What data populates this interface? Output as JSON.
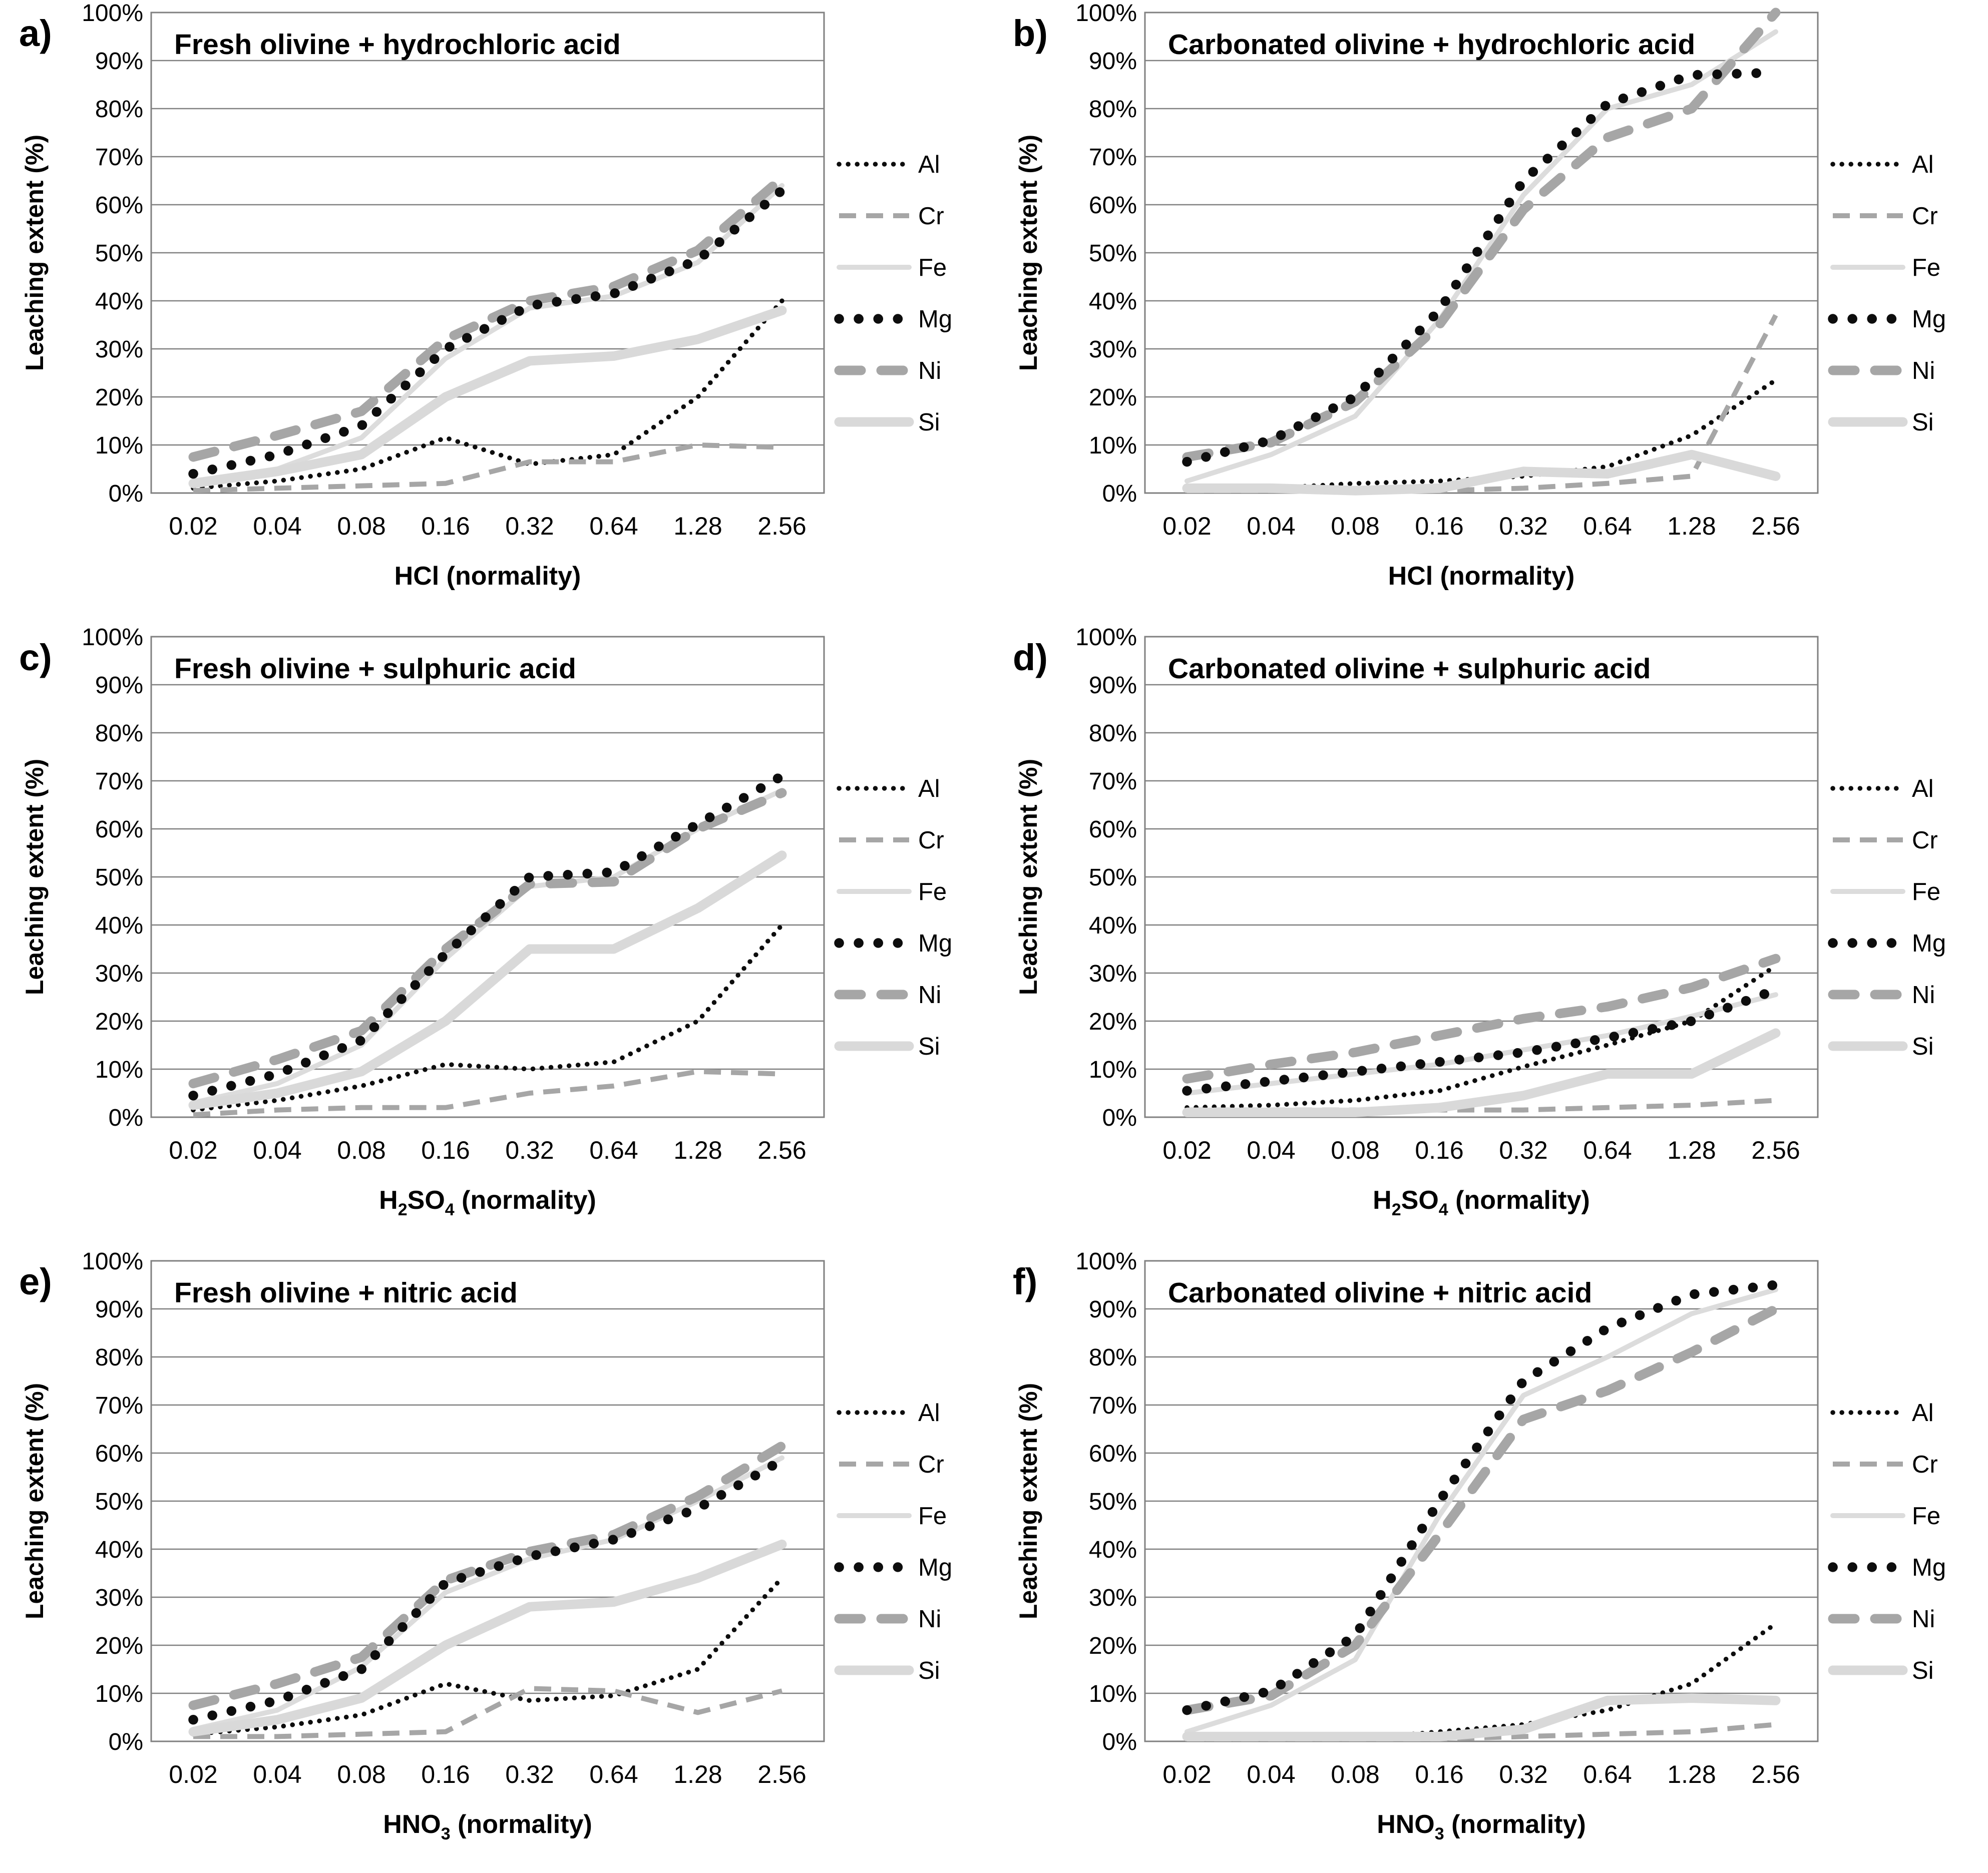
{
  "figure": {
    "ylabel": "Leaching extent (%)",
    "ytick_labels": [
      "0%",
      "10%",
      "20%",
      "30%",
      "40%",
      "50%",
      "60%",
      "70%",
      "80%",
      "90%",
      "100%"
    ],
    "categories": [
      "0.02",
      "0.04",
      "0.08",
      "0.16",
      "0.32",
      "0.64",
      "1.28",
      "2.56"
    ],
    "colors": {
      "black": "#0d0d0d",
      "gray": "#a6a6a6",
      "light_gray": "#d9d9d9",
      "light_gray_thin": "#dcdcdc",
      "gridline": "#808080",
      "text": "#000000",
      "background": "#ffffff"
    }
  },
  "legend": {
    "position": "right",
    "entries": [
      {
        "label": "Al",
        "key": "Al"
      },
      {
        "label": "Cr",
        "key": "Cr"
      },
      {
        "label": "Fe",
        "key": "Fe"
      },
      {
        "label": "Mg",
        "key": "Mg"
      },
      {
        "label": "Ni",
        "key": "Ni"
      },
      {
        "label": "Si",
        "key": "Si"
      }
    ]
  },
  "series_styles": {
    "Al": {
      "color": "#0d0d0d",
      "width": 9.5,
      "dash": "0.1 18",
      "cap": "round",
      "pattern": "fine-dotted"
    },
    "Cr": {
      "color": "#a6a6a6",
      "width": 10,
      "dash": "34 20",
      "cap": "butt",
      "pattern": "dashed-thin"
    },
    "Fe": {
      "color": "#dcdcdc",
      "width": 10,
      "dash": "",
      "cap": "round",
      "pattern": "solid-thin"
    },
    "Mg": {
      "color": "#0d0d0d",
      "width": 19.5,
      "dash": "0.1 39",
      "cap": "round",
      "pattern": "round-dots"
    },
    "Ni": {
      "color": "#a6a6a6",
      "width": 19,
      "dash": "44 40",
      "cap": "round",
      "pattern": "dashed-thick"
    },
    "Si": {
      "color": "#d9d9d9",
      "width": 19,
      "dash": "",
      "cap": "round",
      "pattern": "solid-thick"
    }
  },
  "draw_order": [
    "Al",
    "Cr",
    "Fe",
    "Ni",
    "Si",
    "Mg"
  ],
  "chart_data": [
    {
      "id": "a",
      "letter": "a)",
      "type": "line",
      "title": "Fresh olivine + hydrochloric acid",
      "xlabel_plain": "HCl (normality)",
      "xlabel_parts": [
        {
          "text": "HCl (normality)"
        }
      ],
      "ylabel": "Leaching extent (%)",
      "ylim": [
        0,
        100
      ],
      "grid": true,
      "categories": [
        "0.02",
        "0.04",
        "0.08",
        "0.16",
        "0.32",
        "0.64",
        "1.28",
        "2.56"
      ],
      "series": [
        {
          "name": "Al",
          "values": [
            1,
            2.5,
            5,
            11.5,
            6,
            8,
            20,
            40
          ]
        },
        {
          "name": "Cr",
          "values": [
            0.5,
            1,
            1.5,
            2,
            6.5,
            6.5,
            10,
            9.5
          ]
        },
        {
          "name": "Fe",
          "values": [
            2.5,
            5,
            11.5,
            28,
            38.5,
            41,
            48,
            64
          ]
        },
        {
          "name": "Mg",
          "values": [
            4,
            8,
            14,
            30,
            39,
            41.5,
            48.5,
            63
          ]
        },
        {
          "name": "Ni",
          "values": [
            7.5,
            12,
            17,
            32,
            40,
            43,
            50.5,
            65.5
          ]
        },
        {
          "name": "Si",
          "values": [
            2,
            4.5,
            8,
            20,
            27.5,
            28.5,
            32,
            38
          ]
        }
      ]
    },
    {
      "id": "b",
      "letter": "b)",
      "type": "line",
      "title": "Carbonated olivine + hydrochloric acid",
      "xlabel_plain": "HCl (normality)",
      "xlabel_parts": [
        {
          "text": "HCl (normality)"
        }
      ],
      "ylabel": "Leaching extent (%)",
      "ylim": [
        0,
        100
      ],
      "grid": true,
      "categories": [
        "0.02",
        "0.04",
        "0.08",
        "0.16",
        "0.32",
        "0.64",
        "1.28",
        "2.56"
      ],
      "series": [
        {
          "name": "Al",
          "values": [
            0.5,
            1,
            2,
            2.5,
            3.5,
            5.5,
            12,
            23.5
          ]
        },
        {
          "name": "Cr",
          "values": [
            0.5,
            0.5,
            0.5,
            0.5,
            1,
            2,
            3.5,
            37
          ]
        },
        {
          "name": "Fe",
          "values": [
            2.5,
            8,
            16,
            36,
            62,
            80,
            85,
            96
          ]
        },
        {
          "name": "Mg",
          "values": [
            6.5,
            11,
            20,
            38,
            65,
            81,
            87,
            87.5
          ]
        },
        {
          "name": "Ni",
          "values": [
            7.5,
            10.5,
            19,
            35,
            59,
            74,
            80,
            100
          ]
        },
        {
          "name": "Si",
          "values": [
            1,
            1,
            0.5,
            1,
            4.5,
            4,
            8,
            3.5
          ]
        }
      ]
    },
    {
      "id": "c",
      "letter": "c)",
      "type": "line",
      "title": "Fresh olivine + sulphuric acid",
      "xlabel_plain": "H2SO4 (normality)",
      "xlabel_parts": [
        {
          "text": "H"
        },
        {
          "text": "2",
          "sub": true
        },
        {
          "text": "SO"
        },
        {
          "text": "4",
          "sub": true
        },
        {
          "text": " (normality)"
        }
      ],
      "ylabel": "Leaching extent (%)",
      "ylim": [
        0,
        100
      ],
      "grid": true,
      "categories": [
        "0.02",
        "0.04",
        "0.08",
        "0.16",
        "0.32",
        "0.64",
        "1.28",
        "2.56"
      ],
      "series": [
        {
          "name": "Al",
          "values": [
            1.5,
            3.5,
            6.5,
            11,
            10,
            11.5,
            20,
            40
          ]
        },
        {
          "name": "Cr",
          "values": [
            0.5,
            1.5,
            2,
            2,
            5,
            6.5,
            9.5,
            9
          ]
        },
        {
          "name": "Fe",
          "values": [
            3,
            7,
            15,
            33,
            48,
            50,
            60,
            68
          ]
        },
        {
          "name": "Mg",
          "values": [
            4.5,
            9,
            16,
            34,
            50,
            51,
            61,
            71
          ]
        },
        {
          "name": "Ni",
          "values": [
            7,
            12,
            18,
            35,
            48.5,
            49,
            60,
            67.5
          ]
        },
        {
          "name": "Si",
          "values": [
            2.5,
            5,
            9.5,
            20,
            35,
            35,
            43.5,
            54.5
          ]
        }
      ]
    },
    {
      "id": "d",
      "letter": "d)",
      "type": "line",
      "title": "Carbonated olivine + sulphuric acid",
      "xlabel_plain": "H2SO4 (normality)",
      "xlabel_parts": [
        {
          "text": "H"
        },
        {
          "text": "2",
          "sub": true
        },
        {
          "text": "SO"
        },
        {
          "text": "4",
          "sub": true
        },
        {
          "text": " (normality)"
        }
      ],
      "ylabel": "Leaching extent (%)",
      "ylim": [
        0,
        100
      ],
      "grid": true,
      "categories": [
        "0.02",
        "0.04",
        "0.08",
        "0.16",
        "0.32",
        "0.64",
        "1.28",
        "2.56"
      ],
      "series": [
        {
          "name": "Al",
          "values": [
            2,
            2.5,
            3.5,
            5.5,
            10.5,
            15,
            20,
            31.5
          ]
        },
        {
          "name": "Cr",
          "values": [
            1.5,
            1.5,
            1.5,
            1.5,
            1.5,
            2,
            2.5,
            3.5
          ]
        },
        {
          "name": "Fe",
          "values": [
            5,
            7,
            9,
            11,
            14,
            17,
            21,
            25.5
          ]
        },
        {
          "name": "Mg",
          "values": [
            5.5,
            7.5,
            9.5,
            11.5,
            13.5,
            16.5,
            20,
            26.5
          ]
        },
        {
          "name": "Ni",
          "values": [
            8,
            11,
            13.5,
            17,
            20.5,
            23,
            27,
            33
          ]
        },
        {
          "name": "Si",
          "values": [
            1,
            1,
            1,
            2,
            4.5,
            9,
            9,
            17.5
          ]
        }
      ]
    },
    {
      "id": "e",
      "letter": "e)",
      "type": "line",
      "title": "Fresh olivine + nitric acid",
      "xlabel_plain": "HNO3 (normality)",
      "xlabel_parts": [
        {
          "text": "HNO"
        },
        {
          "text": "3",
          "sub": true
        },
        {
          "text": " (normality)"
        }
      ],
      "ylabel": "Leaching extent (%)",
      "ylim": [
        0,
        100
      ],
      "grid": true,
      "categories": [
        "0.02",
        "0.04",
        "0.08",
        "0.16",
        "0.32",
        "0.64",
        "1.28",
        "2.56"
      ],
      "series": [
        {
          "name": "Al",
          "values": [
            1.5,
            3,
            5.5,
            12,
            8.5,
            9.5,
            15,
            34
          ]
        },
        {
          "name": "Cr",
          "values": [
            1,
            1,
            1.5,
            2,
            11,
            10.5,
            6,
            10.5
          ]
        },
        {
          "name": "Fe",
          "values": [
            2.5,
            6.5,
            15.5,
            31,
            38,
            42,
            50,
            59
          ]
        },
        {
          "name": "Mg",
          "values": [
            4.5,
            8.5,
            15,
            33,
            38.5,
            42,
            48.5,
            58.5
          ]
        },
        {
          "name": "Ni",
          "values": [
            7.5,
            12,
            17.5,
            33.5,
            39.5,
            43,
            51,
            61.5
          ]
        },
        {
          "name": "Si",
          "values": [
            2,
            4.5,
            9,
            20,
            28,
            29,
            34,
            41
          ]
        }
      ]
    },
    {
      "id": "f",
      "letter": "f)",
      "type": "line",
      "title": "Carbonated olivine + nitric acid",
      "xlabel_plain": "HNO3 (normality)",
      "xlabel_parts": [
        {
          "text": "HNO"
        },
        {
          "text": "3",
          "sub": true
        },
        {
          "text": " (normality)"
        }
      ],
      "ylabel": "Leaching extent (%)",
      "ylim": [
        0,
        100
      ],
      "grid": true,
      "categories": [
        "0.02",
        "0.04",
        "0.08",
        "0.16",
        "0.32",
        "0.64",
        "1.28",
        "2.56"
      ],
      "series": [
        {
          "name": "Al",
          "values": [
            0.5,
            0.5,
            0.5,
            2,
            3.5,
            6.5,
            12,
            24.5
          ]
        },
        {
          "name": "Cr",
          "values": [
            0.5,
            0.5,
            0.5,
            0.5,
            1,
            1.5,
            2,
            3.5
          ]
        },
        {
          "name": "Fe",
          "values": [
            2,
            7.5,
            17,
            47,
            72,
            80,
            89,
            94
          ]
        },
        {
          "name": "Mg",
          "values": [
            6.5,
            10.5,
            22,
            50,
            75,
            86,
            93,
            95
          ]
        },
        {
          "name": "Ni",
          "values": [
            6.5,
            9.5,
            20,
            43,
            67,
            73,
            81,
            90
          ]
        },
        {
          "name": "Si",
          "values": [
            1,
            1,
            1,
            1,
            2.5,
            8.5,
            9,
            8.5
          ]
        }
      ]
    }
  ]
}
